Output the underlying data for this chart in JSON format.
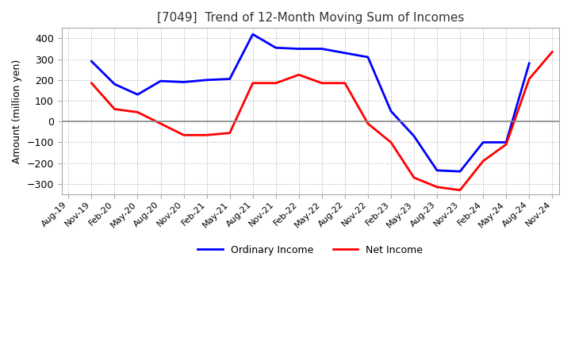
{
  "title": "[7049]  Trend of 12-Month Moving Sum of Incomes",
  "ylabel": "Amount (million yen)",
  "ylim": [
    -350,
    450
  ],
  "yticks": [
    -300,
    -200,
    -100,
    0,
    100,
    200,
    300,
    400
  ],
  "ordinary_income_color": "#0000FF",
  "net_income_color": "#FF0000",
  "background_color": "#FFFFFF",
  "grid_color": "#AAAAAA",
  "x_labels": [
    "Aug-19",
    "Nov-19",
    "Feb-20",
    "May-20",
    "Aug-20",
    "Nov-20",
    "Feb-21",
    "May-21",
    "Aug-21",
    "Nov-21",
    "Feb-22",
    "May-22",
    "Aug-22",
    "Nov-22",
    "Feb-23",
    "May-23",
    "Aug-23",
    "Nov-23",
    "Feb-24",
    "May-24",
    "Aug-24",
    "Nov-24"
  ],
  "ordinary_income": [
    null,
    290,
    180,
    130,
    195,
    190,
    200,
    205,
    420,
    355,
    350,
    350,
    330,
    310,
    50,
    -70,
    -235,
    -240,
    -100,
    -100,
    280,
    null
  ],
  "net_income": [
    null,
    185,
    60,
    45,
    -10,
    -65,
    -65,
    -55,
    185,
    185,
    225,
    185,
    185,
    -10,
    -100,
    -270,
    -315,
    -330,
    -190,
    -110,
    205,
    335
  ],
  "legend_ordinary": "Ordinary Income",
  "legend_net": "Net Income"
}
